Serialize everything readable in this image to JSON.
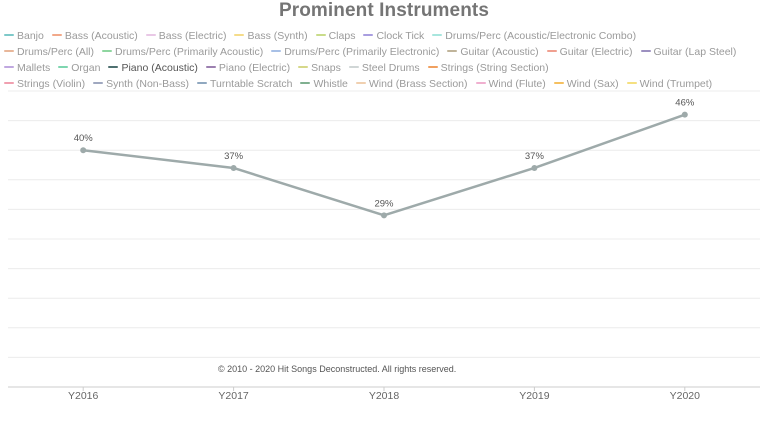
{
  "chart_data": {
    "type": "line",
    "title": "Prominent Instruments",
    "categories": [
      "Y2016",
      "Y2017",
      "Y2018",
      "Y2019",
      "Y2020"
    ],
    "series": [
      {
        "name": "Piano (Acoustic)",
        "values": [
          40,
          37,
          29,
          37,
          46
        ],
        "labels": [
          "40%",
          "37%",
          "29%",
          "37%",
          "46%"
        ],
        "color": "#9eaaaa"
      }
    ],
    "ylim": [
      0,
      50
    ],
    "y_unit": "%",
    "grid": true,
    "legend_position": "top"
  },
  "legend": {
    "items": [
      {
        "label": "Banjo",
        "color": "#7ec9c9"
      },
      {
        "label": "Bass (Acoustic)",
        "color": "#f2a98a"
      },
      {
        "label": "Bass (Electric)",
        "color": "#e9c8e6"
      },
      {
        "label": "Bass (Synth)",
        "color": "#f5dc8a"
      },
      {
        "label": "Claps",
        "color": "#c9dc8a"
      },
      {
        "label": "Clock Tick",
        "color": "#a99ee0"
      },
      {
        "label": "Drums/Perc (Acoustic/Electronic Combo)",
        "color": "#a8e6de"
      },
      {
        "label": "Drums/Perc (All)",
        "color": "#e8b79a"
      },
      {
        "label": "Drums/Perc (Primarily Acoustic)",
        "color": "#8fd6a0"
      },
      {
        "label": "Drums/Perc (Primarily Electronic)",
        "color": "#a8c0e6"
      },
      {
        "label": "Guitar (Acoustic)",
        "color": "#c0b49a"
      },
      {
        "label": "Guitar (Electric)",
        "color": "#f0a090"
      },
      {
        "label": "Guitar (Lap Steel)",
        "color": "#9c90c0"
      },
      {
        "label": "Mallets",
        "color": "#c0a8e0"
      },
      {
        "label": "Organ",
        "color": "#7ed6b0"
      },
      {
        "label": "Piano (Acoustic)",
        "color": "#4e7070",
        "active": true
      },
      {
        "label": "Piano (Electric)",
        "color": "#9c80b0"
      },
      {
        "label": "Snaps",
        "color": "#d6d88a"
      },
      {
        "label": "Steel Drums",
        "color": "#d0d6d6"
      },
      {
        "label": "Strings (String Section)",
        "color": "#f0a060"
      },
      {
        "label": "Strings (Violin)",
        "color": "#f0a0b0"
      },
      {
        "label": "Synth (Non-Bass)",
        "color": "#a0a8c0"
      },
      {
        "label": "Turntable Scratch",
        "color": "#90a8c0"
      },
      {
        "label": "Whistle",
        "color": "#80b090"
      },
      {
        "label": "Wind (Brass Section)",
        "color": "#f0d0b0"
      },
      {
        "label": "Wind (Flute)",
        "color": "#f0b0d0"
      },
      {
        "label": "Wind (Sax)",
        "color": "#f5c060"
      },
      {
        "label": "Wind (Trumpet)",
        "color": "#f5e080"
      }
    ]
  },
  "footer": {
    "copyright": "© 2010 - 2020 Hit Songs Deconstructed. All rights reserved."
  }
}
